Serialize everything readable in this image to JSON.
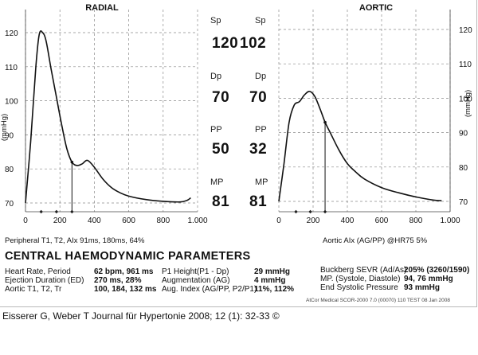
{
  "chart_data": [
    {
      "type": "line",
      "title": "RADIAL",
      "ylabel": "(mmHg)",
      "ylim": [
        67,
        123
      ],
      "yticks": [
        "70",
        "80",
        "90",
        "100",
        "110",
        "120"
      ],
      "xlim": [
        0,
        1.0
      ],
      "xticks": [
        "0",
        "200",
        "400",
        "600",
        "800",
        "1.000"
      ],
      "grid": "dashed",
      "x": [
        0.0,
        0.03,
        0.06,
        0.08,
        0.1,
        0.12,
        0.15,
        0.18,
        0.21,
        0.24,
        0.27,
        0.3,
        0.33,
        0.36,
        0.4,
        0.45,
        0.5,
        0.55,
        0.6,
        0.7,
        0.8,
        0.9,
        0.94,
        0.96
      ],
      "y": [
        70,
        88,
        110,
        119.5,
        120,
        117.5,
        109,
        101,
        93,
        86,
        82,
        81,
        81.5,
        82.5,
        80.5,
        77,
        74.5,
        73,
        72,
        71,
        70.5,
        70.3,
        70.8,
        71.5
      ],
      "markers": {
        "T1_ms": 91,
        "T2_ms": 180,
        "ED_ms": 270
      },
      "footnote": "Peripheral T1, T2, AIx   91ms, 180ms, 64%"
    },
    {
      "type": "line",
      "title": "AORTIC",
      "ylabel": "(mmHg)",
      "ylim": [
        67,
        123
      ],
      "yticks": [
        "70",
        "80",
        "90",
        "100",
        "110",
        "120"
      ],
      "xlim": [
        0,
        1.0
      ],
      "xticks": [
        "0",
        "200",
        "400",
        "600",
        "800",
        "1.000"
      ],
      "grid": "dashed",
      "x": [
        0.0,
        0.03,
        0.06,
        0.09,
        0.12,
        0.15,
        0.18,
        0.21,
        0.24,
        0.27,
        0.3,
        0.35,
        0.4,
        0.45,
        0.5,
        0.6,
        0.7,
        0.8,
        0.9,
        0.95
      ],
      "y": [
        70,
        81,
        93,
        98,
        99,
        101,
        102,
        100.5,
        97,
        93,
        90,
        85,
        81,
        78.5,
        76.5,
        74,
        72.5,
        71.3,
        70.4,
        70.2
      ],
      "markers": {
        "T1_ms": 100,
        "T2_ms": 184,
        "ED_ms": 270
      },
      "footnote": "Aortic AIx  (AG/PP) @HR75    5%"
    }
  ],
  "pressures": {
    "labels": [
      "Sp",
      "Dp",
      "PP",
      "MP"
    ],
    "radial": [
      "120",
      "70",
      "50",
      "81"
    ],
    "aortic": [
      "102",
      "70",
      "32",
      "81"
    ]
  },
  "params": {
    "heading": "CENTRAL HAEMODYNAMIC PARAMETERS",
    "col1": [
      {
        "label": "Heart Rate, Period",
        "value": "62 bpm, 961 ms"
      },
      {
        "label": "Ejection Duration (ED)",
        "value": "270 ms, 28%"
      },
      {
        "label": "Aortic T1, T2, Tr",
        "value": "100, 184, 132 ms"
      }
    ],
    "col2": [
      {
        "label": "P1 Height(P1 - Dp)",
        "value": "29 mmHg"
      },
      {
        "label": "Augmentation (AG)",
        "value": "4 mmHg"
      },
      {
        "label": "Aug. Index (AG/PP, P2/P1)",
        "value": "11%, 112%"
      }
    ],
    "col3": [
      {
        "label": "Buckberg SEVR (Ad/As)",
        "value": "205% (3260/1590)"
      },
      {
        "label": "MP. (Systole, Diastole)",
        "value": "94, 76 mmHg"
      },
      {
        "label": "End Systolic Pressure",
        "value": "93 mmHg"
      }
    ],
    "software": "AtCor Medical SCOR-2000 7.0 (00070) 110 TEST  08 Jan 2008"
  },
  "citation": "Eisserer G, Weber T Journal für Hypertonie 2008; 12 (1): 32-33 ©"
}
